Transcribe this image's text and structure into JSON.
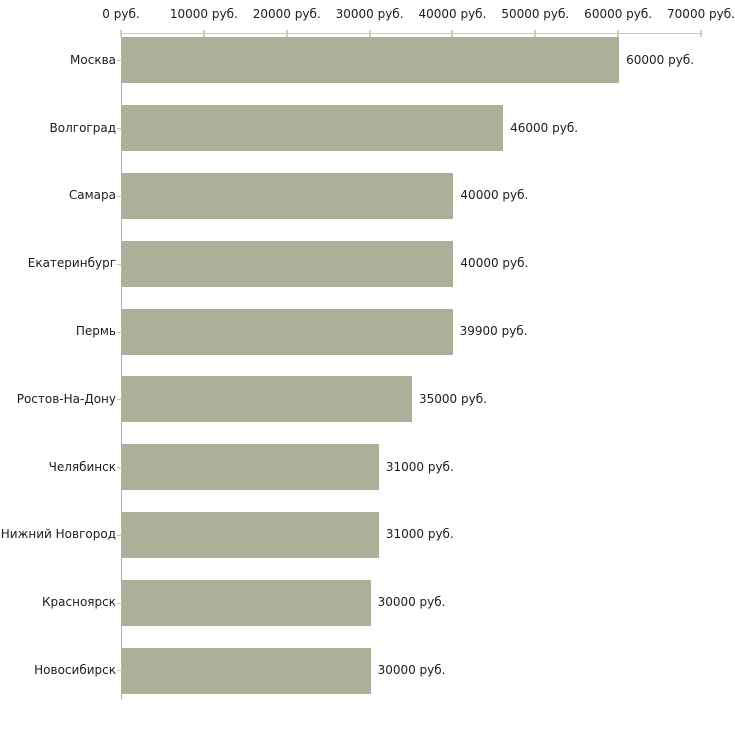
{
  "chart_data": {
    "type": "bar",
    "orientation": "horizontal",
    "title": "",
    "xlabel": "",
    "ylabel": "",
    "unit": "руб.",
    "xlim": [
      0,
      70000
    ],
    "grid": false,
    "legend": false,
    "categories": [
      "Москва",
      "Волгоград",
      "Самара",
      "Екатеринбург",
      "Пермь",
      "Ростов-На-Дону",
      "Челябинск",
      "Нижний Новгород",
      "Красноярск",
      "Новосибирск"
    ],
    "values": [
      60000,
      46000,
      40000,
      40000,
      39900,
      35000,
      31000,
      31000,
      30000,
      30000
    ],
    "value_labels": [
      "60000 руб.",
      "46000 руб.",
      "40000 руб.",
      "40000 руб.",
      "39900 руб.",
      "35000 руб.",
      "31000 руб.",
      "31000 руб.",
      "30000 руб.",
      "30000 руб."
    ],
    "axis_tick_values": [
      0,
      10000,
      20000,
      30000,
      40000,
      50000,
      60000,
      70000
    ],
    "axis_tick_labels": [
      "0 руб.",
      "10000 руб.",
      "20000 руб.",
      "30000 руб.",
      "40000 руб.",
      "50000 руб.",
      "60000 руб.",
      "70000 руб."
    ],
    "colors": {
      "bar": "#abb198",
      "axis_line": "#c6c6c6",
      "y_axis_line": "#b2b2b2",
      "tick_mark": "#cfcfad",
      "category_tick": "#c2c2ae",
      "text": "#1c1c1c",
      "background": "#ffffff"
    }
  }
}
